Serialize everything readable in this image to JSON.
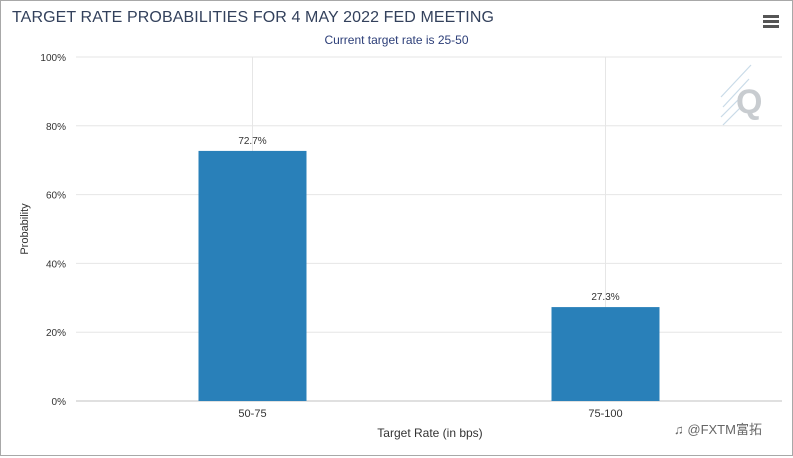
{
  "header": {
    "title": "TARGET RATE PROBABILITIES FOR 4 MAY 2022 FED MEETING",
    "subtitle": "Current target rate is 25-50"
  },
  "watermark": {
    "logo_text": "Q",
    "icon": "cme-fedwatch-q-logo"
  },
  "menu": {
    "icon": "hamburger-menu-icon"
  },
  "footer": {
    "credit": "@FXTM富拓",
    "icon": "social-logo-icon"
  },
  "colors": {
    "bar": "#2980b9",
    "grid": "#e6e6e6",
    "axis_text": "#333333"
  },
  "chart_data": {
    "type": "bar",
    "categories": [
      "50-75",
      "75-100"
    ],
    "values": [
      72.7,
      27.3
    ],
    "data_labels": [
      "72.7%",
      "27.3%"
    ],
    "xlabel": "Target Rate (in bps)",
    "ylabel": "Probability",
    "ylim": [
      0,
      100
    ],
    "yticks": [
      0,
      20,
      40,
      60,
      80,
      100
    ],
    "ytick_labels": [
      "0%",
      "20%",
      "40%",
      "60%",
      "80%",
      "100%"
    ],
    "grid": true
  }
}
